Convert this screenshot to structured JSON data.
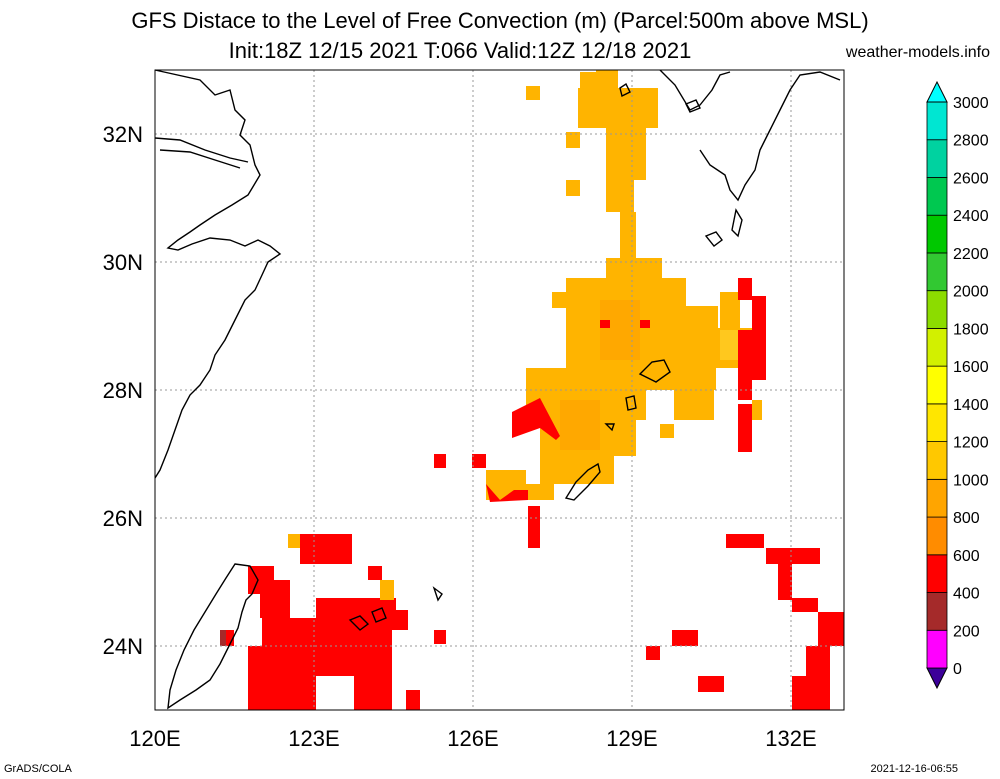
{
  "header": {
    "title": "GFS Distace to the Level of Free Convection (m) (Parcel:500m above MSL)",
    "subtitle": "Init:18Z 12/15 2021 T:066 Valid:12Z 12/18 2021",
    "credit": "weather-models.info"
  },
  "footer": {
    "left": "GrADS/COLA",
    "right": "2021-12-16-06:55"
  },
  "map": {
    "lon_labels": [
      "120E",
      "123E",
      "126E",
      "129E",
      "132E"
    ],
    "lat_labels": [
      "24N",
      "26N",
      "28N",
      "30N",
      "32N"
    ],
    "lon_values": [
      120,
      123,
      126,
      129,
      132
    ],
    "lat_values": [
      24,
      26,
      28,
      30,
      32
    ],
    "lon_range": [
      120,
      133
    ],
    "lat_range": [
      23,
      33
    ],
    "grid": "dotted"
  },
  "colorbar": {
    "labels": [
      "0",
      "200",
      "400",
      "600",
      "800",
      "1000",
      "1200",
      "1400",
      "1600",
      "1800",
      "2000",
      "2200",
      "2400",
      "2600",
      "2800",
      "3000"
    ],
    "colors": [
      "#3c0099",
      "#ff00ff",
      "#a52a2a",
      "#ff0000",
      "#ff8c00",
      "#ffa500",
      "#ffc800",
      "#ffe600",
      "#ffff00",
      "#d2f000",
      "#8cdc00",
      "#32c832",
      "#00c800",
      "#00c850",
      "#00d2a0",
      "#00e6d2",
      "#00ffff"
    ]
  },
  "fields": {
    "red": "#ff0000",
    "orange": "#ff9f00",
    "amber": "#ffb400",
    "yellow": "#ffc81e"
  }
}
